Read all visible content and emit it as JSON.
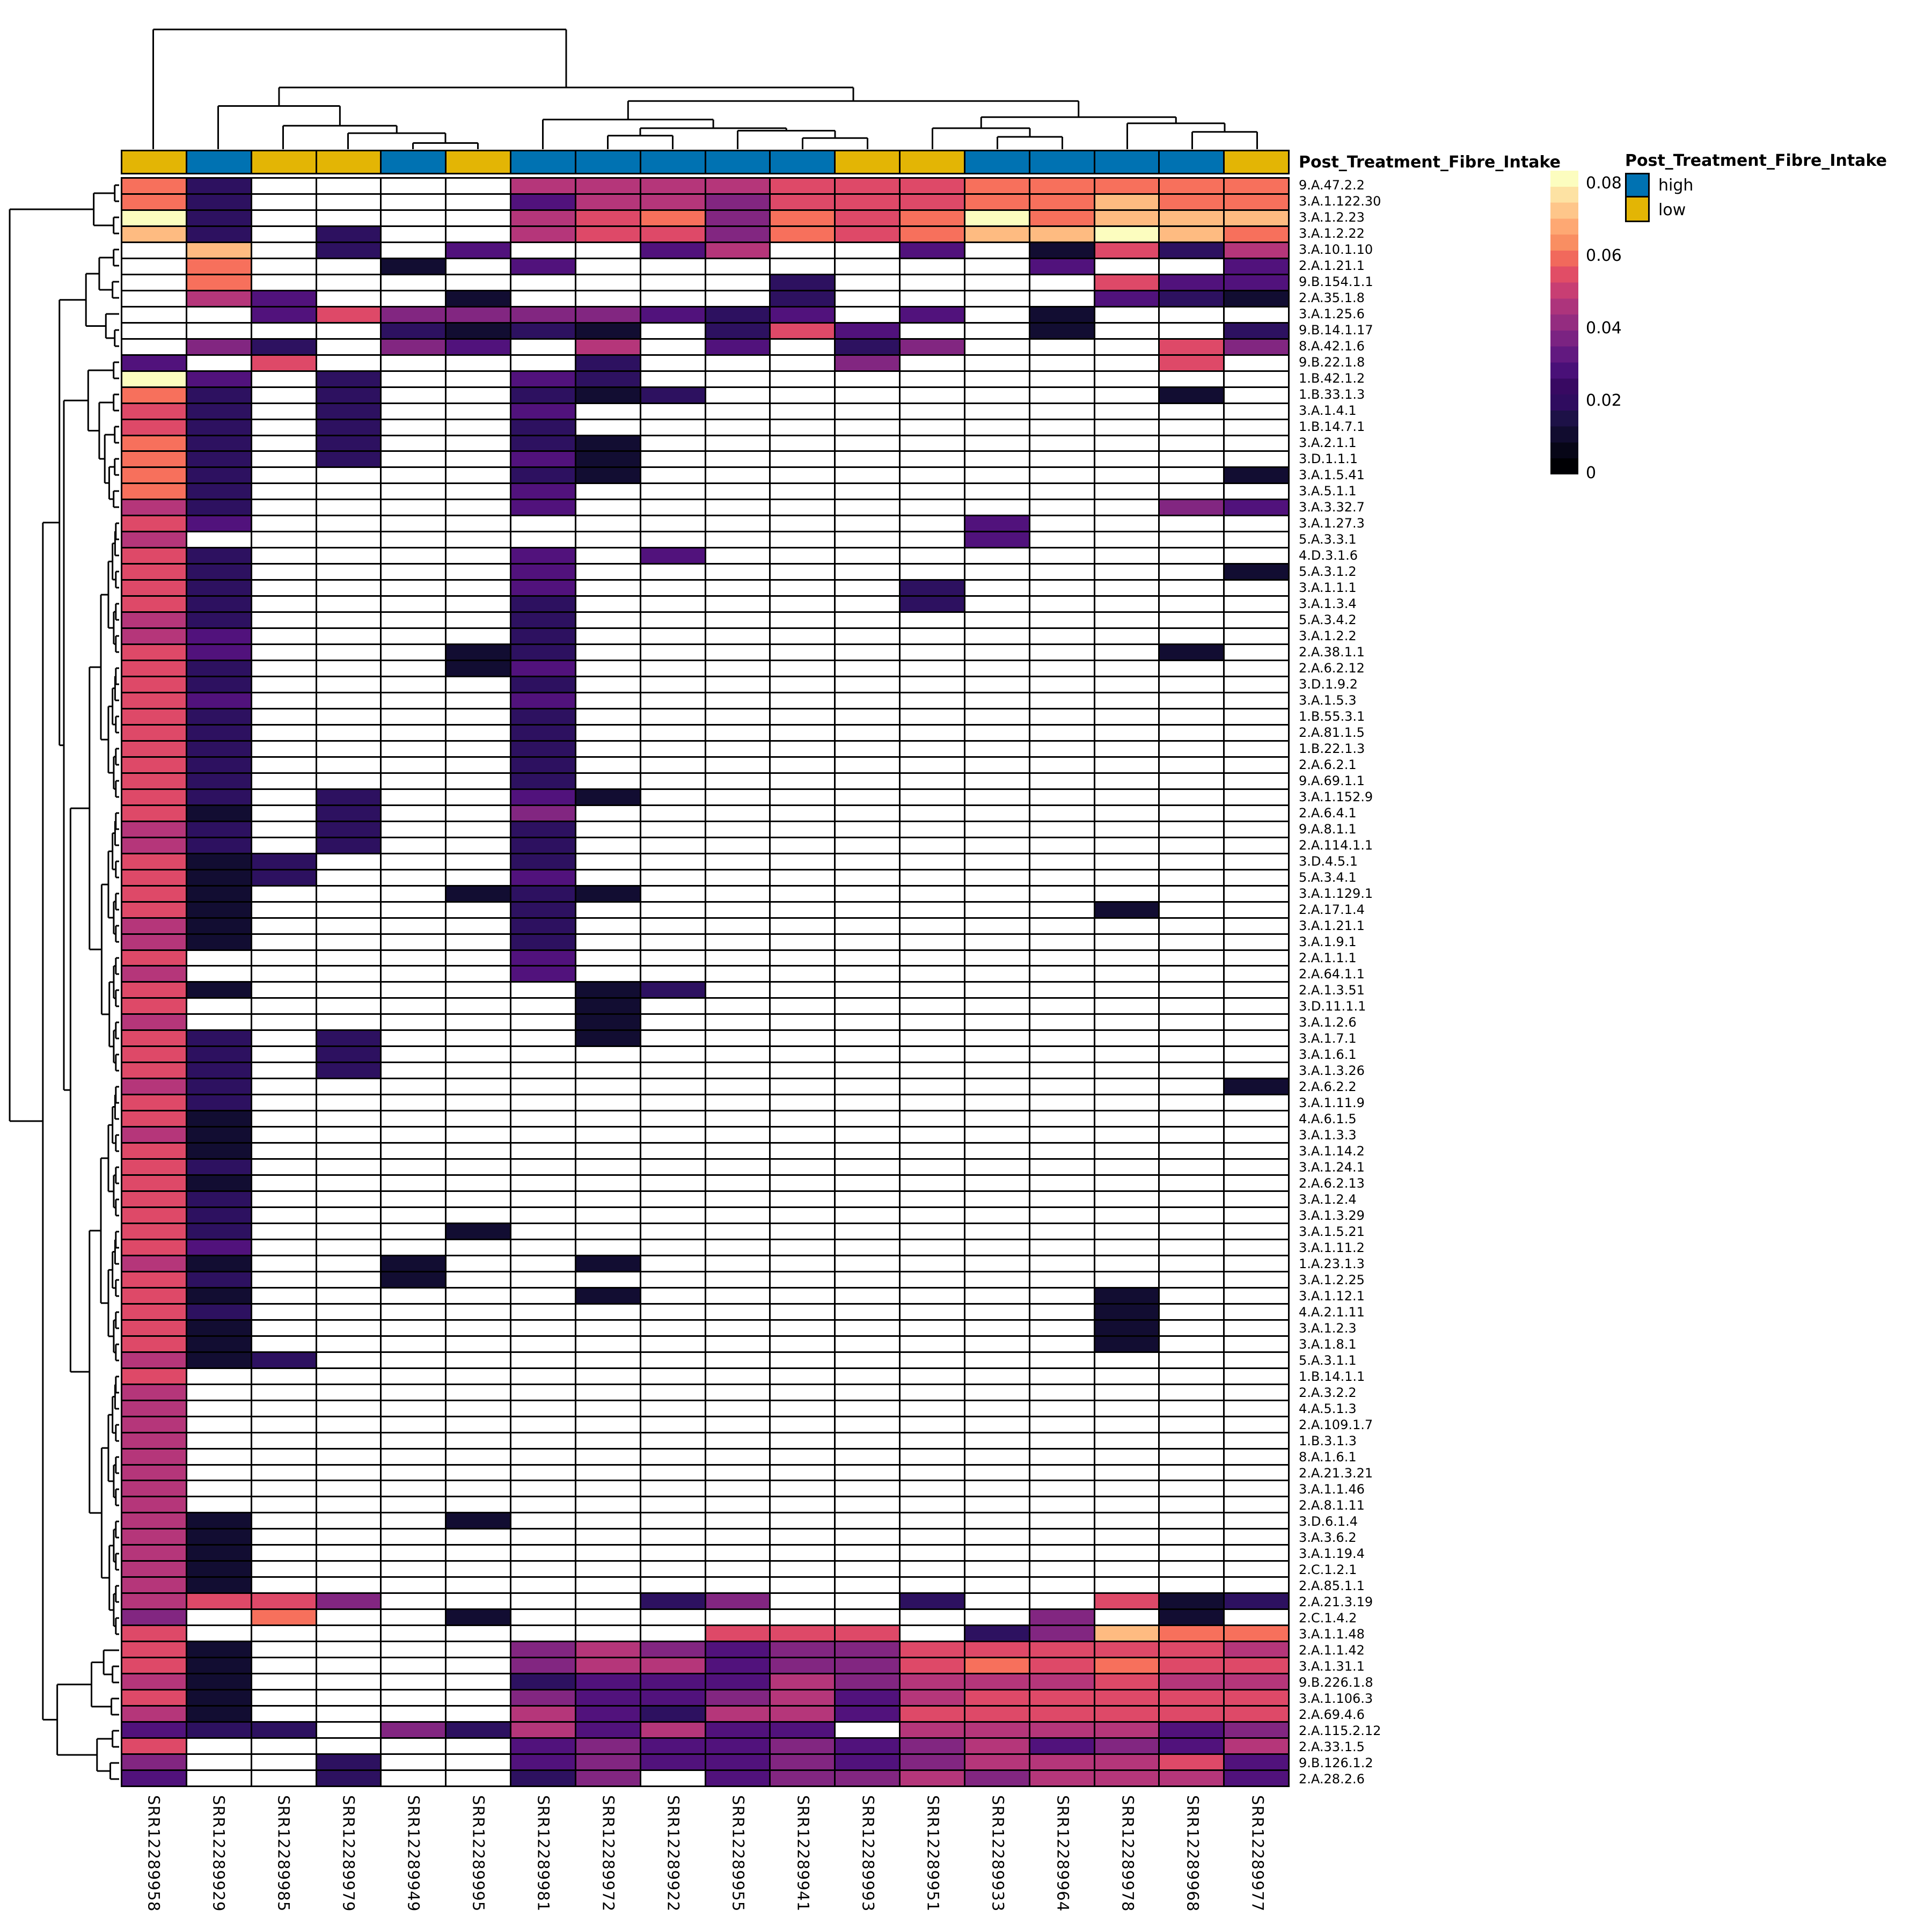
{
  "annotation": {
    "label": "Post_Treatment_Fibre_Intake",
    "legend_title": "Post_Treatment_Fibre_Intake",
    "levels": [
      {
        "name": "high",
        "color": "#0072B2"
      },
      {
        "name": "low",
        "color": "#E3B505"
      }
    ]
  },
  "chart_data": {
    "type": "heatmap",
    "title": "",
    "legend": {
      "ticks": [
        "0.08",
        "0.06",
        "0.04",
        "0.02",
        "0"
      ],
      "position": "right",
      "range": [
        0,
        0.08
      ]
    },
    "x": [
      "SRR12289958",
      "SRR12289929",
      "SRR12289985",
      "SRR12289979",
      "SRR12289949",
      "SRR12289995",
      "SRR12289981",
      "SRR12289972",
      "SRR12289922",
      "SRR12289955",
      "SRR12289941",
      "SRR12289993",
      "SRR12289951",
      "SRR12289933",
      "SRR12289964",
      "SRR12289978",
      "SRR12289968",
      "SRR12289977"
    ],
    "column_annotation": [
      "low",
      "high",
      "low",
      "low",
      "high",
      "low",
      "high",
      "high",
      "high",
      "high",
      "high",
      "low",
      "low",
      "high",
      "high",
      "high",
      "high",
      "low"
    ],
    "y": [
      "9.A.47.2.2",
      "3.A.1.122.30",
      "3.A.1.2.23",
      "3.A.1.2.22",
      "3.A.10.1.10",
      "2.A.1.21.1",
      "9.B.154.1.1",
      "2.A.35.1.8",
      "3.A.1.25.6",
      "9.B.14.1.17",
      "8.A.42.1.6",
      "9.B.22.1.8",
      "1.B.42.1.2",
      "1.B.33.1.3",
      "3.A.1.4.1",
      "1.B.14.7.1",
      "3.A.2.1.1",
      "3.D.1.1.1",
      "3.A.1.5.41",
      "3.A.5.1.1",
      "3.A.3.32.7",
      "3.A.1.27.3",
      "5.A.3.3.1",
      "4.D.3.1.6",
      "5.A.3.1.2",
      "3.A.1.1.1",
      "3.A.1.3.4",
      "5.A.3.4.2",
      "3.A.1.2.2",
      "2.A.38.1.1",
      "2.A.6.2.12",
      "3.D.1.9.2",
      "3.A.1.5.3",
      "1.B.55.3.1",
      "2.A.81.1.5",
      "1.B.22.1.3",
      "2.A.6.2.1",
      "9.A.69.1.1",
      "3.A.1.152.9",
      "2.A.6.4.1",
      "9.A.8.1.1",
      "2.A.114.1.1",
      "3.D.4.5.1",
      "5.A.3.4.1",
      "3.A.1.129.1",
      "2.A.17.1.4",
      "3.A.1.21.1",
      "3.A.1.9.1",
      "2.A.1.1.1",
      "2.A.64.1.1",
      "2.A.1.3.51",
      "3.D.11.1.1",
      "3.A.1.2.6",
      "3.A.1.7.1",
      "3.A.1.6.1",
      "3.A.1.3.26",
      "2.A.6.2.2",
      "3.A.1.11.9",
      "4.A.6.1.5",
      "3.A.1.3.3",
      "3.A.1.14.2",
      "3.A.1.24.1",
      "2.A.6.2.13",
      "3.A.1.2.4",
      "3.A.1.3.29",
      "3.A.1.5.21",
      "3.A.1.11.2",
      "1.A.23.1.3",
      "3.A.1.2.25",
      "3.A.1.12.1",
      "4.A.2.1.11",
      "3.A.1.2.3",
      "3.A.1.8.1",
      "5.A.3.1.1",
      "1.B.14.1.1",
      "2.A.3.2.2",
      "4.A.5.1.3",
      "2.A.109.1.7",
      "1.B.3.1.3",
      "8.A.1.6.1",
      "2.A.21.3.21",
      "3.A.1.1.46",
      "2.A.8.1.11",
      "3.D.6.1.4",
      "3.A.3.6.2",
      "3.A.1.19.4",
      "2.C.1.2.1",
      "2.A.85.1.1",
      "2.A.21.3.19",
      "2.C.1.4.2",
      "3.A.1.1.48",
      "2.A.1.1.42",
      "3.A.1.31.1",
      "9.B.226.1.8",
      "3.A.1.106.3",
      "2.A.69.4.6",
      "2.A.115.2.12",
      "2.A.33.1.5",
      "9.B.126.1.2",
      "2.A.28.2.6"
    ],
    "value_buckets": {
      ".": null,
      "0": 0.004,
      "1": 0.012,
      "2": 0.02,
      "3": 0.03,
      "4": 0.04,
      "5": 0.05,
      "6": 0.06,
      "7": 0.07,
      "8": 0.08
    },
    "cells": [
      "61....444455566666",
      "61....244355566766",
      "81....456365686777",
      "71.1..455365677876",
      ".7.1.2..24..2.0514",
      ".6..0.2.......2..2",
      ".6........1....522",
      ".42..0....1....210",
      "..253333212.2.0...",
      "....1010.152..0..1",
      ".31.32.4.2.13...53",
      "2.5....1...3....5.",
      "82.1..21..........",
      "61.1..101.......0.",
      "51.1..2............",
      "51.1..1............",
      "61.1..10..........",
      "61.1..20..........",
      "61....10.........0.",
      "61....2............",
      "41....2.........32",
      "52...........2.....",
      "4............2.....",
      "51....2.2..........",
      "51....2..........0",
      "51....2.....1......",
      "51....1.....1......",
      "41....1............",
      "42....1............",
      "52...01.........0.",
      "51...02............",
      "51....1............",
      "52....2............",
      "51....1............",
      "51....1............",
      "51....1............",
      "51....1............",
      "51....1............",
      "51.1..20...........",
      "50.1..3............",
      "41.1..1............",
      "41.1..1............",
      "501...1............",
      "501...2............",
      "50...010...........",
      "50....1........0...",
      "40....1............",
      "40....1............",
      "5.....2............",
      "4.....2............",
      "50.....01..........",
      "5......0...........",
      "4......0...........",
      "51.1...0...........",
      "51.1...............",
      "51.1...............",
      "41...............0",
      "51.................",
      "50.................",
      "40.................",
      "50.................",
      "51.................",
      "50.................",
      "51.................",
      "51.................",
      "51...0.............",
      "52.................",
      "40..0..0...........",
      "51..0..............",
      "50.....0.......0...",
      "51.............0...",
      "50.............0...",
      "50.............0...",
      "401................",
      "5..................",
      "4..................",
      "4..................",
      "4..................",
      "4..................",
      "4..................",
      "4..................",
      "4..................",
      "4..................",
      "40...0.............",
      "40.................",
      "40.................",
      "40.................",
      "40.................",
      "4553....13..1..501",
      "3.6..0........3.0",
      "5........555.13766",
      "50....343233555554",
      "50....344233565655",
      "40....122243444544",
      "50....322342455555",
      "40....421442555555",
      "211.3142422.444423",
      "5.....232232342324",
      "3..1..232232344452",
      "2..1..13.233434442"
    ]
  },
  "palette": {
    ".": "#ffffff",
    "0": "#120d32",
    "1": "#2d1160",
    "2": "#51127c",
    "3": "#822681",
    "4": "#b5367a",
    "5": "#de4968",
    "6": "#f7705c",
    "7": "#febb81",
    "8": "#fcfdbf"
  },
  "colorbar_colors_top_to_bottom": [
    "#fcfdbf",
    "#fde2a3",
    "#fec68a",
    "#fea873",
    "#f98e62",
    "#f1695c",
    "#e14d66",
    "#c83e73",
    "#ad347c",
    "#942c80",
    "#7b2382",
    "#621980",
    "#491078",
    "#380962",
    "#2f0c5f",
    "#1d1147",
    "#110c2f",
    "#070617",
    "#000004"
  ],
  "dendrograms": {
    "top": [
      1,
      [
        [
          2,
          [
            3,
            [
              4,
              [
                5,
                6,
                0.05
              ],
              0.13
            ],
            0.19
          ],
          0.35
        ],
        [
          [
            7,
            [
              [
                8,
                9,
                0.11
              ],
              [
                10,
                [
                  11,
                  12,
                  0.09
                ],
                0.15
              ],
              0.17
            ],
            0.24
          ],
          [
            [
              13,
              [
                14,
                15,
                0.1
              ],
              0.17
            ],
            [
              16,
              [
                17,
                18,
                0.14
              ],
              0.21
            ],
            0.26
          ],
          0.39
        ],
        0.5
      ],
      0.97
    ],
    "left_macro": {
      "g14": [
        [
          1,
          2,
          0.04
        ],
        [
          3,
          4,
          0.05
        ],
        0.23
      ],
      "g58": [
        [
          5,
          6,
          0.05
        ],
        [
          7,
          8,
          0.06
        ],
        0.18
      ],
      "g911": [
        9,
        [
          10,
          11,
          0.04
        ],
        0.12
      ],
      "g1221": [
        [
          12,
          13,
          0.05
        ],
        [
          [
            14,
            15,
            0.05
          ],
          [
            [
              16,
              17,
              0.04
            ],
            [
              [
                18,
                19,
                0.04
              ],
              [
                20,
                21,
                0.05
              ],
              0.09
            ],
            0.13
          ],
          0.18
        ],
        0.28
      ],
      "bot": [
        [
          [
            92,
            [
              93,
              94,
              0.06
            ],
            0.14
          ],
          [
            95,
            96,
            0.07
          ],
          0.25
        ],
        [
          [
            97,
            98,
            0.06
          ],
          [
            99,
            100,
            0.08
          ],
          0.2
        ],
        0.56
      ],
      "comb_span": [
        22,
        91
      ],
      "heights": {
        "root": 0.99,
        "r2": 0.69,
        "r3": 0.54,
        "r4": 0.5,
        "comb_max": 0.44
      }
    }
  },
  "layout_text": {
    "colorbar_ticks": [
      "0.08",
      "0.06",
      "0.04",
      "0.02",
      "0"
    ]
  }
}
